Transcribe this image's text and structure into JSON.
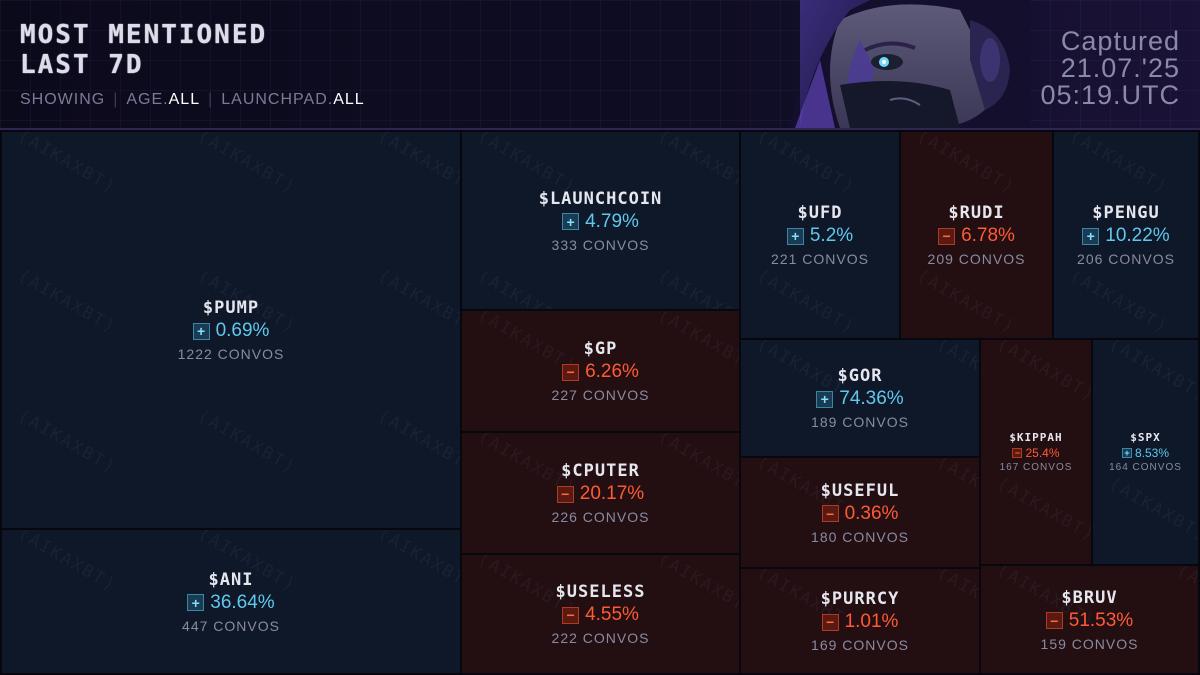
{
  "header": {
    "title_line1": "MOST MENTIONED",
    "title_line2": "LAST 7D",
    "showing_label": "SHOWING",
    "age_label": "AGE",
    "age_value": "ALL",
    "launchpad_label": "LAUNCHPAD",
    "launchpad_value": "ALL",
    "captured_label": "Captured",
    "captured_date": "21.07.'25",
    "captured_time": "05:19.UTC"
  },
  "watermark": "⟨AIKAXBT⟩",
  "chart_data": {
    "type": "treemap",
    "colors": {
      "positive": "#5fc8ec",
      "negative": "#ff5a35",
      "positive_bg": "#0f1829",
      "negative_bg": "#230f12"
    },
    "items": [
      {
        "ticker": "$PUMP",
        "direction": "+",
        "change": "0.69%",
        "convos": 1222,
        "convos_label": "1222 CONVOS"
      },
      {
        "ticker": "$ANI",
        "direction": "+",
        "change": "36.64%",
        "convos": 447,
        "convos_label": "447 CONVOS"
      },
      {
        "ticker": "$LAUNCHCOIN",
        "direction": "+",
        "change": "4.79%",
        "convos": 333,
        "convos_label": "333 CONVOS"
      },
      {
        "ticker": "$GP",
        "direction": "-",
        "change": "6.26%",
        "convos": 227,
        "convos_label": "227 CONVOS"
      },
      {
        "ticker": "$CPUTER",
        "direction": "-",
        "change": "20.17%",
        "convos": 226,
        "convos_label": "226 CONVOS"
      },
      {
        "ticker": "$USELESS",
        "direction": "-",
        "change": "4.55%",
        "convos": 222,
        "convos_label": "222 CONVOS"
      },
      {
        "ticker": "$UFD",
        "direction": "+",
        "change": "5.2%",
        "convos": 221,
        "convos_label": "221 CONVOS"
      },
      {
        "ticker": "$RUDI",
        "direction": "-",
        "change": "6.78%",
        "convos": 209,
        "convos_label": "209 CONVOS"
      },
      {
        "ticker": "$PENGU",
        "direction": "+",
        "change": "10.22%",
        "convos": 206,
        "convos_label": "206 CONVOS"
      },
      {
        "ticker": "$GOR",
        "direction": "+",
        "change": "74.36%",
        "convos": 189,
        "convos_label": "189 CONVOS"
      },
      {
        "ticker": "$USEFUL",
        "direction": "-",
        "change": "0.36%",
        "convos": 180,
        "convos_label": "180 CONVOS"
      },
      {
        "ticker": "$PURRCY",
        "direction": "-",
        "change": "1.01%",
        "convos": 169,
        "convos_label": "169 CONVOS"
      },
      {
        "ticker": "$KIPPAH",
        "direction": "-",
        "change": "25.4%",
        "convos": 167,
        "convos_label": "167 CONVOS"
      },
      {
        "ticker": "$SPX",
        "direction": "+",
        "change": "8.53%",
        "convos": 164,
        "convos_label": "164 CONVOS"
      },
      {
        "ticker": "$BRUV",
        "direction": "-",
        "change": "51.53%",
        "convos": 159,
        "convos_label": "159 CONVOS"
      }
    ]
  }
}
